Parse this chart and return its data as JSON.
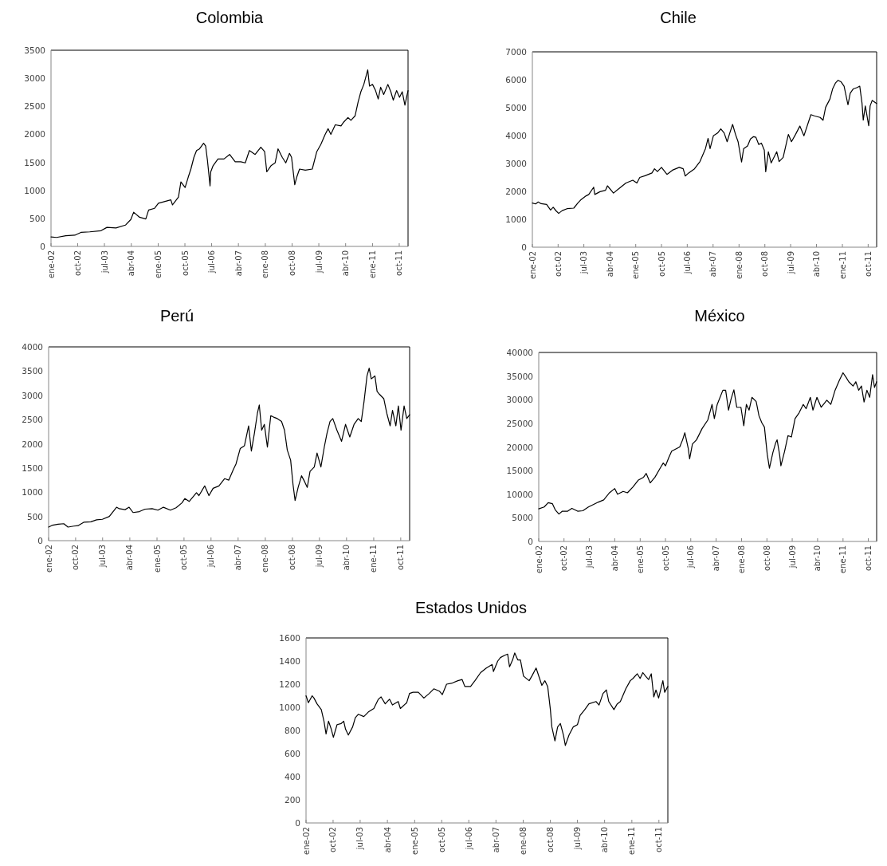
{
  "chart_data": [
    {
      "type": "line",
      "title": "Colombia",
      "color": "#000000",
      "xlim": [
        "2002-01-01",
        "2011-12-30"
      ],
      "ylim": [
        0,
        3500
      ],
      "yticks": [
        0,
        500,
        1000,
        1500,
        2000,
        2500,
        3000,
        3500
      ],
      "xticks": [
        {
          "value": "2002-01-01",
          "label": "ene-02"
        },
        {
          "value": "2002-10-01",
          "label": "oct-02"
        },
        {
          "value": "2003-07-01",
          "label": "jul-03"
        },
        {
          "value": "2004-04-01",
          "label": "abr-04"
        },
        {
          "value": "2005-01-01",
          "label": "ene-05"
        },
        {
          "value": "2005-10-01",
          "label": "oct-05"
        },
        {
          "value": "2006-07-01",
          "label": "jul-06"
        },
        {
          "value": "2007-04-01",
          "label": "abr-07"
        },
        {
          "value": "2008-01-01",
          "label": "ene-08"
        },
        {
          "value": "2008-10-01",
          "label": "oct-08"
        },
        {
          "value": "2009-07-01",
          "label": "jul-09"
        },
        {
          "value": "2010-04-01",
          "label": "abr-10"
        },
        {
          "value": "2011-01-01",
          "label": "ene-11"
        },
        {
          "value": "2011-10-01",
          "label": "oct-11"
        }
      ],
      "x": [
        "2002-01-01",
        "2002-02-27",
        "2002-06-01",
        "2002-09-01",
        "2002-11-03",
        "2003-02-01",
        "2003-05-27",
        "2003-07-27",
        "2003-10-27",
        "2004-02-01",
        "2004-03-27",
        "2004-04-25",
        "2004-06-24",
        "2004-08-27",
        "2004-09-25",
        "2004-11-25",
        "2005-01-03",
        "2005-05-10",
        "2005-05-27",
        "2005-07-27",
        "2005-08-21",
        "2005-10-03",
        "2005-11-03",
        "2005-12-01",
        "2006-01-01",
        "2006-01-28",
        "2006-02-27",
        "2006-04-10",
        "2006-05-01",
        "2006-05-19",
        "2006-06-15",
        "2006-06-22",
        "2006-07-16",
        "2006-09-04",
        "2006-11-04",
        "2007-01-01",
        "2007-02-27",
        "2007-04-25",
        "2007-06-10",
        "2007-07-22",
        "2007-09-19",
        "2007-11-16",
        "2007-12-25",
        "2008-01-16",
        "2008-02-28",
        "2008-04-10",
        "2008-05-10",
        "2008-06-22",
        "2008-07-28",
        "2008-09-04",
        "2008-09-25",
        "2008-10-28",
        "2008-11-16",
        "2008-12-16",
        "2009-02-13",
        "2009-04-25",
        "2009-06-10",
        "2009-07-22",
        "2009-09-04",
        "2009-10-04",
        "2009-11-01",
        "2009-12-16",
        "2010-02-13",
        "2010-03-13",
        "2010-04-25",
        "2010-05-25",
        "2010-07-07",
        "2010-08-07",
        "2010-09-04",
        "2010-10-04",
        "2010-11-13",
        "2010-12-01",
        "2011-01-01",
        "2011-02-01",
        "2011-02-28",
        "2011-03-25",
        "2011-04-25",
        "2011-06-07",
        "2011-07-07",
        "2011-08-01",
        "2011-09-04",
        "2011-10-04",
        "2011-11-01",
        "2011-11-28",
        "2011-12-30"
      ],
      "values": [
        170,
        160,
        190,
        200,
        250,
        260,
        280,
        340,
        330,
        380,
        480,
        610,
        520,
        490,
        650,
        680,
        770,
        830,
        740,
        880,
        1150,
        1050,
        1230,
        1380,
        1590,
        1710,
        1740,
        1840,
        1790,
        1540,
        1080,
        1330,
        1440,
        1560,
        1560,
        1640,
        1510,
        1510,
        1490,
        1710,
        1640,
        1770,
        1690,
        1330,
        1440,
        1490,
        1740,
        1590,
        1490,
        1660,
        1590,
        1100,
        1230,
        1380,
        1360,
        1380,
        1690,
        1820,
        2000,
        2100,
        2000,
        2170,
        2150,
        2220,
        2300,
        2250,
        2330,
        2580,
        2760,
        2890,
        3150,
        2860,
        2890,
        2780,
        2630,
        2840,
        2710,
        2890,
        2760,
        2610,
        2780,
        2660,
        2760,
        2520,
        2780
      ]
    },
    {
      "type": "line",
      "title": "Chile",
      "color": "#000000",
      "xlim": [
        "2002-01-01",
        "2011-12-30"
      ],
      "ylim": [
        0,
        7000
      ],
      "yticks": [
        0,
        1000,
        2000,
        3000,
        4000,
        5000,
        6000,
        7000
      ],
      "xticks": [
        {
          "value": "2002-01-01",
          "label": "ene-02"
        },
        {
          "value": "2002-10-01",
          "label": "oct-02"
        },
        {
          "value": "2003-07-01",
          "label": "jul-03"
        },
        {
          "value": "2004-04-01",
          "label": "abr-04"
        },
        {
          "value": "2005-01-01",
          "label": "ene-05"
        },
        {
          "value": "2005-10-01",
          "label": "oct-05"
        },
        {
          "value": "2006-07-01",
          "label": "jul-06"
        },
        {
          "value": "2007-04-01",
          "label": "abr-07"
        },
        {
          "value": "2008-01-01",
          "label": "ene-08"
        },
        {
          "value": "2008-10-01",
          "label": "oct-08"
        },
        {
          "value": "2009-07-01",
          "label": "jul-09"
        },
        {
          "value": "2010-04-01",
          "label": "abr-10"
        },
        {
          "value": "2011-01-01",
          "label": "ene-11"
        },
        {
          "value": "2011-10-01",
          "label": "oct-11"
        }
      ],
      "x": [
        "2002-01-01",
        "2002-02-04",
        "2002-03-04",
        "2002-04-04",
        "2002-06-01",
        "2002-07-13",
        "2002-08-10",
        "2002-09-10",
        "2002-10-07",
        "2002-11-13",
        "2003-01-04",
        "2003-03-16",
        "2003-04-28",
        "2003-05-28",
        "2003-07-25",
        "2003-08-22",
        "2003-10-13",
        "2003-10-25",
        "2003-12-19",
        "2004-02-16",
        "2004-03-07",
        "2004-05-10",
        "2004-07-07",
        "2004-09-19",
        "2004-12-01",
        "2005-01-13",
        "2005-02-13",
        "2005-04-10",
        "2005-06-22",
        "2005-07-19",
        "2005-08-19",
        "2005-10-01",
        "2005-11-28",
        "2006-01-25",
        "2006-04-07",
        "2006-05-19",
        "2006-06-10",
        "2006-07-16",
        "2006-09-16",
        "2006-11-13",
        "2007-01-10",
        "2007-02-07",
        "2007-02-28",
        "2007-04-04",
        "2007-05-19",
        "2007-06-22",
        "2007-07-28",
        "2007-08-28",
        "2007-09-25",
        "2007-10-25",
        "2007-11-25",
        "2007-12-22",
        "2008-01-28",
        "2008-02-19",
        "2008-04-01",
        "2008-05-01",
        "2008-06-01",
        "2008-06-28",
        "2008-07-28",
        "2008-08-25",
        "2008-09-25",
        "2008-10-10",
        "2008-11-07",
        "2008-12-07",
        "2009-02-04",
        "2009-03-01",
        "2009-04-13",
        "2009-06-07",
        "2009-07-10",
        "2009-08-22",
        "2009-10-07",
        "2009-11-19",
        "2010-02-01",
        "2010-03-13",
        "2010-05-10",
        "2010-06-10",
        "2010-07-07",
        "2010-08-22",
        "2010-09-19",
        "2010-10-19",
        "2010-11-16",
        "2010-12-16",
        "2011-01-19",
        "2011-03-01",
        "2011-03-25",
        "2011-04-25",
        "2011-06-07",
        "2011-07-04",
        "2011-07-28",
        "2011-08-10",
        "2011-09-01",
        "2011-10-07",
        "2011-10-22",
        "2011-11-13",
        "2011-12-30"
      ],
      "values": [
        1580,
        1550,
        1620,
        1560,
        1530,
        1330,
        1430,
        1300,
        1210,
        1310,
        1380,
        1400,
        1580,
        1690,
        1840,
        1890,
        2150,
        1890,
        1990,
        2040,
        2200,
        1940,
        2100,
        2300,
        2400,
        2300,
        2500,
        2560,
        2660,
        2810,
        2710,
        2860,
        2610,
        2760,
        2860,
        2810,
        2550,
        2660,
        2810,
        3070,
        3530,
        3900,
        3530,
        3990,
        4090,
        4240,
        4090,
        3780,
        4090,
        4400,
        4040,
        3780,
        3050,
        3530,
        3630,
        3880,
        3960,
        3940,
        3680,
        3730,
        3480,
        2700,
        3420,
        3020,
        3420,
        3070,
        3220,
        4040,
        3780,
        4040,
        4340,
        3990,
        4750,
        4700,
        4650,
        4550,
        5010,
        5310,
        5670,
        5880,
        5980,
        5930,
        5770,
        5100,
        5520,
        5670,
        5720,
        5770,
        5160,
        4550,
        5060,
        4350,
        5060,
        5260,
        5150
      ]
    },
    {
      "type": "line",
      "title": "Perú",
      "color": "#000000",
      "xlim": [
        "2002-01-01",
        "2011-12-30"
      ],
      "ylim": [
        0,
        4000
      ],
      "yticks": [
        0,
        500,
        1000,
        1500,
        2000,
        2500,
        3000,
        3500,
        4000
      ],
      "xticks": [
        {
          "value": "2002-01-01",
          "label": "ene-02"
        },
        {
          "value": "2002-10-01",
          "label": "oct-02"
        },
        {
          "value": "2003-07-01",
          "label": "jul-03"
        },
        {
          "value": "2004-04-01",
          "label": "abr-04"
        },
        {
          "value": "2005-01-01",
          "label": "ene-05"
        },
        {
          "value": "2005-10-01",
          "label": "oct-05"
        },
        {
          "value": "2006-07-01",
          "label": "jul-06"
        },
        {
          "value": "2007-04-01",
          "label": "abr-07"
        },
        {
          "value": "2008-01-01",
          "label": "ene-08"
        },
        {
          "value": "2008-10-01",
          "label": "oct-08"
        },
        {
          "value": "2009-07-01",
          "label": "jul-09"
        },
        {
          "value": "2010-04-01",
          "label": "abr-10"
        },
        {
          "value": "2011-01-01",
          "label": "ene-11"
        },
        {
          "value": "2011-10-01",
          "label": "oct-11"
        }
      ],
      "x": [
        "2002-01-01",
        "2002-02-10",
        "2002-04-07",
        "2002-06-04",
        "2002-07-16",
        "2002-09-13",
        "2002-10-25",
        "2002-12-22",
        "2003-03-04",
        "2003-05-01",
        "2003-06-28",
        "2003-09-07",
        "2003-10-07",
        "2003-11-19",
        "2003-12-16",
        "2004-02-13",
        "2004-03-25",
        "2004-05-04",
        "2004-07-07",
        "2004-09-01",
        "2004-11-13",
        "2005-01-10",
        "2005-03-07",
        "2005-05-16",
        "2005-07-13",
        "2005-09-10",
        "2005-10-10",
        "2005-11-22",
        "2006-02-04",
        "2006-03-01",
        "2006-04-28",
        "2006-06-10",
        "2006-07-22",
        "2006-09-19",
        "2006-11-16",
        "2006-12-28",
        "2007-02-10",
        "2007-03-10",
        "2007-04-22",
        "2007-06-04",
        "2007-07-16",
        "2007-08-13",
        "2007-09-13",
        "2007-10-13",
        "2007-11-01",
        "2007-11-25",
        "2007-12-22",
        "2008-01-22",
        "2008-02-25",
        "2008-03-25",
        "2008-05-01",
        "2008-06-13",
        "2008-07-13",
        "2008-08-10",
        "2008-09-13",
        "2008-10-07",
        "2008-10-28",
        "2008-11-28",
        "2009-01-01",
        "2009-02-01",
        "2009-02-28",
        "2009-03-28",
        "2009-05-10",
        "2009-06-07",
        "2009-07-16",
        "2009-08-19",
        "2009-09-16",
        "2009-10-16",
        "2009-11-13",
        "2009-12-25",
        "2010-02-10",
        "2010-03-22",
        "2010-05-04",
        "2010-06-16",
        "2010-07-28",
        "2010-08-28",
        "2010-09-25",
        "2010-10-25",
        "2010-11-16",
        "2010-12-07",
        "2011-01-13",
        "2011-02-04",
        "2011-03-01",
        "2011-04-13",
        "2011-05-13",
        "2011-06-16",
        "2011-07-10",
        "2011-08-13",
        "2011-09-07",
        "2011-10-04",
        "2011-11-04",
        "2011-12-01",
        "2011-12-30"
      ],
      "values": [
        280,
        320,
        340,
        350,
        280,
        300,
        310,
        380,
        390,
        430,
        440,
        500,
        580,
        690,
        660,
        640,
        690,
        580,
        600,
        650,
        660,
        630,
        690,
        630,
        680,
        780,
        870,
        810,
        990,
        930,
        1130,
        930,
        1080,
        1130,
        1280,
        1250,
        1460,
        1580,
        1900,
        1960,
        2370,
        1850,
        2220,
        2630,
        2800,
        2280,
        2400,
        1930,
        2580,
        2550,
        2520,
        2460,
        2280,
        1870,
        1660,
        1160,
        830,
        1100,
        1340,
        1220,
        1100,
        1430,
        1520,
        1810,
        1520,
        1930,
        2220,
        2460,
        2520,
        2280,
        2050,
        2400,
        2140,
        2400,
        2520,
        2460,
        2870,
        3400,
        3560,
        3340,
        3400,
        3080,
        3020,
        2930,
        2630,
        2370,
        2690,
        2370,
        2780,
        2280,
        2780,
        2520,
        2600
      ]
    },
    {
      "type": "line",
      "title": "México",
      "color": "#000000",
      "xlim": [
        "2002-01-01",
        "2011-12-30"
      ],
      "ylim": [
        0,
        40000
      ],
      "yticks": [
        0,
        5000,
        10000,
        15000,
        20000,
        25000,
        30000,
        35000,
        40000
      ],
      "xticks": [
        {
          "value": "2002-01-01",
          "label": "ene-02"
        },
        {
          "value": "2002-10-01",
          "label": "oct-02"
        },
        {
          "value": "2003-07-01",
          "label": "jul-03"
        },
        {
          "value": "2004-04-01",
          "label": "abr-04"
        },
        {
          "value": "2005-01-01",
          "label": "ene-05"
        },
        {
          "value": "2005-10-01",
          "label": "oct-05"
        },
        {
          "value": "2006-07-01",
          "label": "jul-06"
        },
        {
          "value": "2007-04-01",
          "label": "abr-07"
        },
        {
          "value": "2008-01-01",
          "label": "ene-08"
        },
        {
          "value": "2008-10-01",
          "label": "oct-08"
        },
        {
          "value": "2009-07-01",
          "label": "jul-09"
        },
        {
          "value": "2010-04-01",
          "label": "abr-10"
        },
        {
          "value": "2011-01-01",
          "label": "ene-11"
        },
        {
          "value": "2011-10-01",
          "label": "oct-11"
        }
      ],
      "x": [
        "2002-01-01",
        "2002-03-01",
        "2002-04-13",
        "2002-05-28",
        "2002-06-28",
        "2002-08-07",
        "2002-09-13",
        "2002-11-10",
        "2002-12-25",
        "2003-02-25",
        "2003-04-22",
        "2003-06-22",
        "2003-08-22",
        "2003-10-04",
        "2003-12-04",
        "2004-02-04",
        "2004-04-01",
        "2004-05-01",
        "2004-07-01",
        "2004-08-16",
        "2004-10-13",
        "2004-12-13",
        "2005-02-07",
        "2005-03-07",
        "2005-04-19",
        "2005-06-10",
        "2005-08-10",
        "2005-09-07",
        "2005-10-01",
        "2005-11-07",
        "2005-12-07",
        "2006-03-04",
        "2006-04-04",
        "2006-04-28",
        "2006-06-04",
        "2006-06-19",
        "2006-07-19",
        "2006-09-01",
        "2006-11-01",
        "2007-01-01",
        "2007-02-16",
        "2007-03-13",
        "2007-04-13",
        "2007-06-13",
        "2007-07-13",
        "2007-08-13",
        "2007-09-10",
        "2007-10-10",
        "2007-11-10",
        "2007-12-25",
        "2008-01-25",
        "2008-02-22",
        "2008-03-22",
        "2008-04-22",
        "2008-06-07",
        "2008-07-07",
        "2008-08-07",
        "2008-09-04",
        "2008-10-04",
        "2008-10-28",
        "2008-12-04",
        "2009-01-04",
        "2009-01-19",
        "2009-02-16",
        "2009-03-01",
        "2009-04-10",
        "2009-05-16",
        "2009-06-22",
        "2009-08-01",
        "2009-09-13",
        "2009-10-28",
        "2009-11-28",
        "2010-01-13",
        "2010-02-10",
        "2010-03-25",
        "2010-05-10",
        "2010-07-10",
        "2010-08-22",
        "2010-10-07",
        "2010-11-22",
        "2011-01-01",
        "2011-02-04",
        "2011-03-04",
        "2011-04-19",
        "2011-05-19",
        "2011-06-19",
        "2011-07-19",
        "2011-08-16",
        "2011-09-16",
        "2011-10-16",
        "2011-11-16",
        "2011-12-07",
        "2011-12-30"
      ],
      "values": [
        6900,
        7300,
        8200,
        8000,
        6700,
        5800,
        6400,
        6400,
        7000,
        6400,
        6500,
        7300,
        7900,
        8300,
        8800,
        10300,
        11200,
        10000,
        10600,
        10300,
        11500,
        13000,
        13600,
        14400,
        12400,
        13600,
        15700,
        16600,
        16000,
        17800,
        19100,
        20000,
        21500,
        23000,
        19700,
        17500,
        20600,
        21500,
        23900,
        25700,
        29000,
        26000,
        29000,
        32000,
        32000,
        27800,
        30200,
        32100,
        28400,
        28400,
        24500,
        29000,
        27800,
        30500,
        29600,
        26600,
        25100,
        24200,
        18500,
        15500,
        18800,
        20900,
        21500,
        18200,
        16000,
        19100,
        22400,
        22100,
        26000,
        27200,
        29000,
        28100,
        30500,
        27800,
        30500,
        28400,
        29900,
        29000,
        32000,
        34100,
        35700,
        34700,
        33800,
        32900,
        33800,
        32000,
        32900,
        29500,
        32000,
        30500,
        35300,
        32600,
        33800
      ]
    },
    {
      "type": "line",
      "title": "Estados Unidos",
      "color": "#000000",
      "xlim": [
        "2002-01-01",
        "2011-12-30"
      ],
      "ylim": [
        0,
        1600
      ],
      "yticks": [
        0,
        200,
        400,
        600,
        800,
        1000,
        1200,
        1400,
        1600
      ],
      "xticks": [
        {
          "value": "2002-01-01",
          "label": "ene-02"
        },
        {
          "value": "2002-10-01",
          "label": "oct-02"
        },
        {
          "value": "2003-07-01",
          "label": "jul-03"
        },
        {
          "value": "2004-04-01",
          "label": "abr-04"
        },
        {
          "value": "2005-01-01",
          "label": "ene-05"
        },
        {
          "value": "2005-10-01",
          "label": "oct-05"
        },
        {
          "value": "2006-07-01",
          "label": "jul-06"
        },
        {
          "value": "2007-04-01",
          "label": "abr-07"
        },
        {
          "value": "2008-01-01",
          "label": "ene-08"
        },
        {
          "value": "2008-10-01",
          "label": "oct-08"
        },
        {
          "value": "2009-07-01",
          "label": "jul-09"
        },
        {
          "value": "2010-04-01",
          "label": "abr-10"
        },
        {
          "value": "2011-01-01",
          "label": "ene-11"
        },
        {
          "value": "2011-10-01",
          "label": "oct-11"
        }
      ],
      "x": [
        "2002-01-01",
        "2002-01-25",
        "2002-03-04",
        "2002-03-22",
        "2002-04-22",
        "2002-06-04",
        "2002-07-01",
        "2002-07-22",
        "2002-08-16",
        "2002-09-13",
        "2002-10-04",
        "2002-11-10",
        "2002-12-22",
        "2003-01-16",
        "2003-02-04",
        "2003-03-04",
        "2003-04-16",
        "2003-05-13",
        "2003-06-13",
        "2003-08-07",
        "2003-09-22",
        "2003-11-16",
        "2004-01-01",
        "2004-01-28",
        "2004-03-10",
        "2004-04-22",
        "2004-05-22",
        "2004-07-19",
        "2004-08-10",
        "2004-10-13",
        "2004-11-10",
        "2004-12-16",
        "2005-02-07",
        "2005-04-04",
        "2005-05-28",
        "2005-07-13",
        "2005-09-07",
        "2005-10-07",
        "2005-11-19",
        "2006-01-16",
        "2006-03-13",
        "2006-04-25",
        "2006-05-22",
        "2006-07-19",
        "2006-09-01",
        "2006-10-28",
        "2006-12-25",
        "2007-02-22",
        "2007-03-07",
        "2007-04-19",
        "2007-05-16",
        "2007-06-28",
        "2007-07-28",
        "2007-08-16",
        "2007-09-16",
        "2007-10-07",
        "2007-11-07",
        "2007-12-04",
        "2008-01-04",
        "2008-03-01",
        "2008-03-28",
        "2008-05-10",
        "2008-06-10",
        "2008-07-07",
        "2008-08-07",
        "2008-09-04",
        "2008-10-01",
        "2008-10-16",
        "2008-11-16",
        "2008-12-13",
        "2009-01-10",
        "2009-02-10",
        "2009-03-01",
        "2009-04-07",
        "2009-05-19",
        "2009-07-01",
        "2009-07-28",
        "2009-09-13",
        "2009-10-25",
        "2010-01-04",
        "2010-02-04",
        "2010-03-16",
        "2010-04-19",
        "2010-05-13",
        "2010-07-04",
        "2010-08-07",
        "2010-09-07",
        "2010-11-01",
        "2010-12-16",
        "2011-01-13",
        "2011-02-25",
        "2011-03-25",
        "2011-04-22",
        "2011-05-19",
        "2011-06-19",
        "2011-07-16",
        "2011-08-10",
        "2011-09-01",
        "2011-09-28",
        "2011-11-10",
        "2011-11-28",
        "2011-12-30"
      ],
      "values": [
        1100,
        1040,
        1100,
        1080,
        1030,
        980,
        880,
        770,
        880,
        810,
        740,
        850,
        860,
        880,
        810,
        760,
        830,
        910,
        940,
        920,
        960,
        990,
        1070,
        1090,
        1030,
        1070,
        1020,
        1050,
        990,
        1040,
        1120,
        1130,
        1130,
        1080,
        1120,
        1160,
        1140,
        1110,
        1200,
        1210,
        1230,
        1240,
        1180,
        1180,
        1230,
        1300,
        1340,
        1370,
        1310,
        1400,
        1430,
        1450,
        1460,
        1350,
        1410,
        1470,
        1410,
        1410,
        1270,
        1230,
        1270,
        1340,
        1260,
        1190,
        1230,
        1180,
        980,
        830,
        710,
        830,
        860,
        760,
        670,
        760,
        830,
        850,
        930,
        980,
        1030,
        1050,
        1020,
        1120,
        1150,
        1050,
        980,
        1030,
        1050,
        1160,
        1230,
        1250,
        1290,
        1250,
        1300,
        1270,
        1240,
        1290,
        1090,
        1150,
        1080,
        1230,
        1130,
        1180
      ]
    }
  ]
}
